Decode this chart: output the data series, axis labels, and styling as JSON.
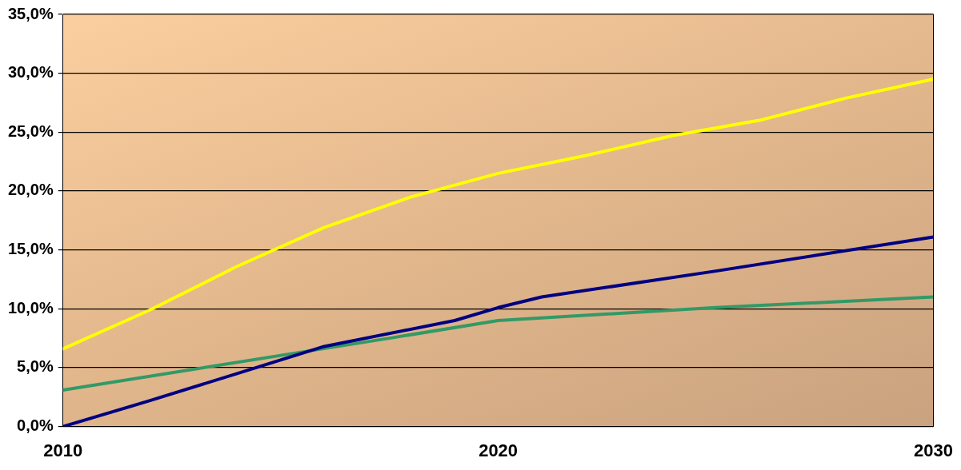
{
  "chart_data": {
    "type": "line",
    "series": [
      {
        "color": "#ffff00",
        "x": [
          2010,
          2012,
          2014,
          2016,
          2018,
          2020,
          2022,
          2024,
          2026,
          2028,
          2030
        ],
        "values": [
          6.6,
          9.9,
          13.6,
          16.9,
          19.5,
          21.5,
          23.0,
          24.7,
          26.0,
          27.9,
          29.5
        ]
      },
      {
        "color": "#000080",
        "x": [
          2010,
          2012,
          2014,
          2016,
          2019,
          2020,
          2021,
          2025,
          2030
        ],
        "values": [
          0,
          2.2,
          4.5,
          6.8,
          9.0,
          10.1,
          11.0,
          13.2,
          16.1
        ]
      },
      {
        "color": "#339966",
        "x": [
          2010,
          2017.5,
          2020,
          2025,
          2030
        ],
        "values": [
          3.1,
          7.5,
          9.0,
          10.1,
          11.0
        ]
      }
    ],
    "xlim": [
      2010,
      2030
    ],
    "xticks": [
      2010,
      2020,
      2030
    ],
    "ylim": [
      0,
      35
    ],
    "yticks": [
      {
        "value": 0,
        "label": "0,0%"
      },
      {
        "value": 5,
        "label": "5,0%"
      },
      {
        "value": 10,
        "label": "10,0%"
      },
      {
        "value": 15,
        "label": "15,0%"
      },
      {
        "value": 20,
        "label": "20,0%"
      },
      {
        "value": 25,
        "label": "25,0%"
      },
      {
        "value": 30,
        "label": "30,0%"
      },
      {
        "value": 35,
        "label": "35,0%"
      }
    ],
    "grid": "y",
    "legend": false,
    "marker": "none",
    "line_style": "solid"
  }
}
